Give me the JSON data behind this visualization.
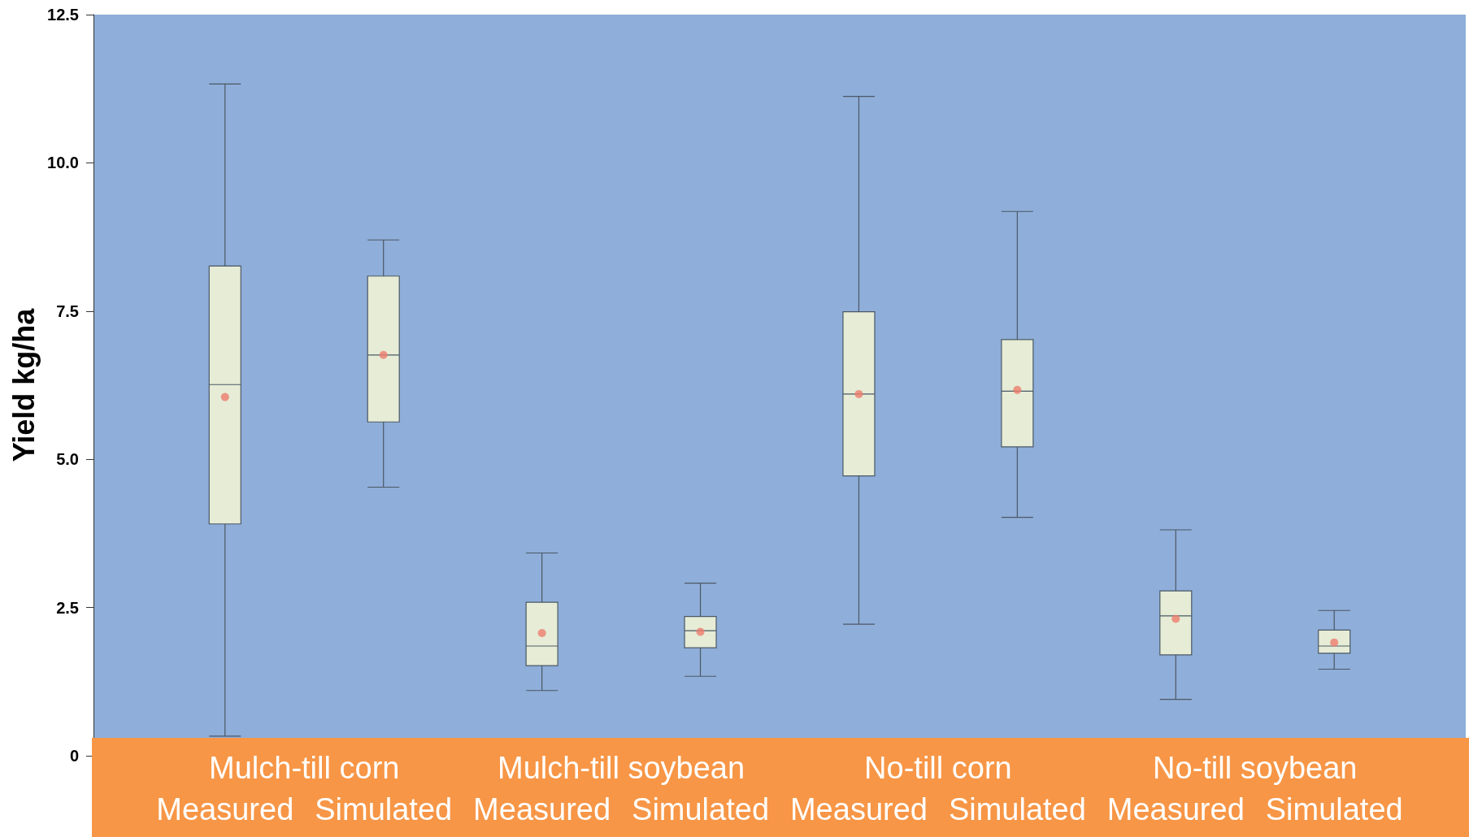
{
  "chart_data": {
    "type": "box",
    "ylabel": "Yield kg/ha",
    "categories": [
      "Measured",
      "Simulated",
      "Measured",
      "Simulated",
      "Measured",
      "Simulated",
      "Measured",
      "Simulated"
    ],
    "annotations": [
      "Mulch-till corn",
      "Mulch-till soybean",
      "No-till corn",
      "No-till soybean"
    ],
    "color": "#e6ecd5",
    "boxes": [
      {
        "low": 0.33,
        "q1": 3.91,
        "median": 6.26,
        "q3": 8.26,
        "high": 11.33,
        "mean": 6.05
      },
      {
        "low": 4.53,
        "q1": 5.63,
        "median": 6.76,
        "q3": 8.09,
        "high": 8.7,
        "mean": 6.76
      },
      {
        "low": 1.1,
        "q1": 1.52,
        "median": 1.85,
        "q3": 2.59,
        "high": 3.42,
        "mean": 2.07
      },
      {
        "low": 1.34,
        "q1": 1.82,
        "median": 2.11,
        "q3": 2.35,
        "high": 2.91,
        "mean": 2.09
      },
      {
        "low": 2.22,
        "q1": 4.72,
        "median": 6.1,
        "q3": 7.49,
        "high": 11.12,
        "mean": 6.1
      },
      {
        "low": 4.02,
        "q1": 5.21,
        "median": 6.15,
        "q3": 7.02,
        "high": 9.18,
        "mean": 6.17
      },
      {
        "low": 0.95,
        "q1": 1.7,
        "median": 2.36,
        "q3": 2.78,
        "high": 3.81,
        "mean": 2.31
      },
      {
        "low": 1.46,
        "q1": 1.73,
        "median": 1.85,
        "q3": 2.12,
        "high": 2.45,
        "mean": 1.91
      }
    ],
    "ylim": [
      0,
      12.5
    ],
    "yticks": [
      0,
      2.5,
      {
        "value": 5,
        "label": "5.0"
      },
      7.5,
      {
        "value": 10,
        "label": "10.0"
      },
      12.5
    ]
  }
}
